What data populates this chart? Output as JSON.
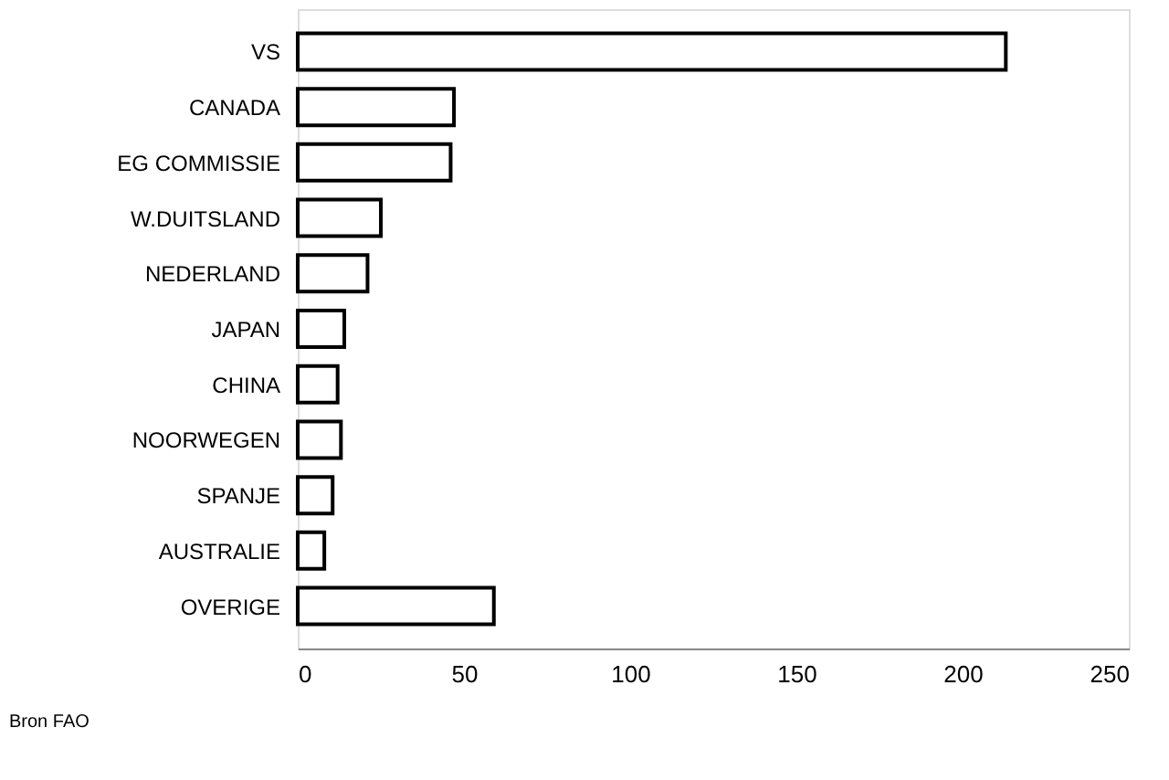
{
  "chart_data": {
    "type": "bar",
    "orientation": "horizontal",
    "categories": [
      "VS",
      "CANADA",
      "EG COMMISSIE",
      "W.DUITSLAND",
      "NEDERLAND",
      "JAPAN",
      "CHINA",
      "NOORWEGEN",
      "SPANJE",
      "AUSTRALIE",
      "OVERIGE"
    ],
    "values": [
      213,
      47,
      46,
      25,
      21,
      14,
      12,
      13,
      10.5,
      8,
      59
    ],
    "color": "#ffffff",
    "xlim": [
      0,
      250
    ],
    "xticks": [
      0,
      50,
      100,
      150,
      200,
      250
    ],
    "grid": false,
    "annotations": [
      "Bron FAO"
    ]
  }
}
